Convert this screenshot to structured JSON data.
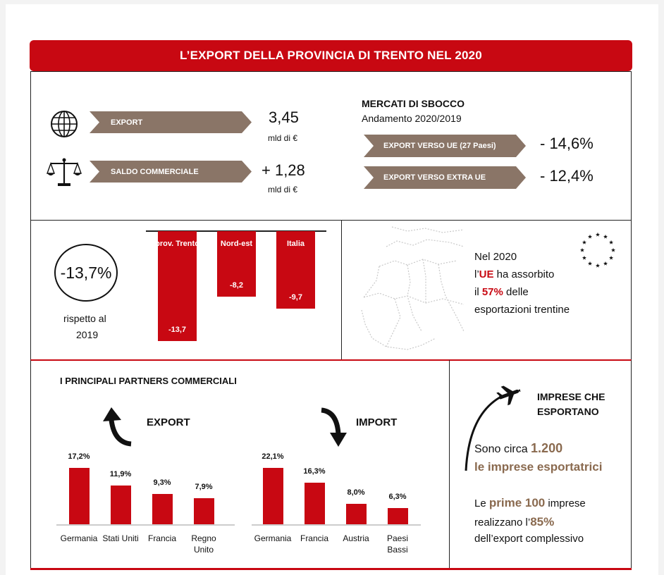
{
  "title": "L’EXPORT DELLA PROVINCIA DI TRENTO NEL 2020",
  "summary": {
    "export_label": "EXPORT",
    "export_value": "3,45",
    "export_unit": "mld di €",
    "saldo_label": "SALDO COMMERCIALE",
    "saldo_value": "+ 1,28",
    "saldo_unit": "mld di €"
  },
  "mercati": {
    "title": "MERCATI DI SBOCCO",
    "subtitle": "Andamento 2020/2019",
    "ue_label": "EXPORT VERSO UE (27 Paesi)",
    "ue_value": "- 14,6%",
    "extra_label": "EXPORT VERSO EXTRA UE",
    "extra_value": "- 12,4%"
  },
  "variazione": {
    "value": "-13,7%",
    "caption_line1": "rispetto al",
    "caption_line2": "2019"
  },
  "chart_data": [
    {
      "type": "bar",
      "categories": [
        "prov. Trento",
        "Nord-est",
        "Italia"
      ],
      "values": [
        -13.7,
        -8.2,
        -9.7
      ],
      "value_labels": [
        "-13,7",
        "-8,2",
        "-9,7"
      ],
      "title": "",
      "xlabel": "",
      "ylabel": ""
    },
    {
      "type": "bar",
      "title": "EXPORT",
      "categories": [
        "Germania",
        "Stati Uniti",
        "Francia",
        "Regno Unito"
      ],
      "values": [
        17.2,
        11.9,
        9.3,
        7.9
      ],
      "value_labels": [
        "17,2%",
        "11,9%",
        "9,3%",
        "7,9%"
      ]
    },
    {
      "type": "bar",
      "title": "IMPORT",
      "categories": [
        "Germania",
        "Francia",
        "Austria",
        "Paesi Bassi"
      ],
      "values": [
        22.1,
        16.3,
        8.0,
        6.3
      ],
      "value_labels": [
        "22,1%",
        "16,3%",
        "8,0%",
        "6,3%"
      ]
    }
  ],
  "ue": {
    "line1": "Nel 2020",
    "line2_a": "l’",
    "line2_b": "UE",
    "line2_c": " ha assorbito",
    "line3_a": "il ",
    "line3_b": "57%",
    "line3_c": " delle",
    "line4": "esportazioni trentine"
  },
  "partners": {
    "title": "I PRINCIPALI PARTNERS COMMERCIALI",
    "export_title": "EXPORT",
    "import_title": "IMPORT"
  },
  "imprese": {
    "title_line1": "IMPRESE CHE",
    "title_line2": "ESPORTANO",
    "p1_a": "Sono circa ",
    "p1_b": "1.200",
    "p1_line2": "le imprese esportatrici",
    "p2_a": "Le ",
    "p2_b": "prime 100",
    "p2_c": " imprese",
    "p2_d": "realizzano l’",
    "p2_e": "85%",
    "p2_f": "dell’export complessivo"
  },
  "colors": {
    "red": "#c80812",
    "brown": "#8a7567",
    "accent_text": "#8a6a4f"
  },
  "icons": [
    "globe-icon",
    "scales-icon",
    "eu-stars-icon",
    "europe-map",
    "curved-up-arrow-icon",
    "curved-down-arrow-icon",
    "airplane-icon"
  ]
}
